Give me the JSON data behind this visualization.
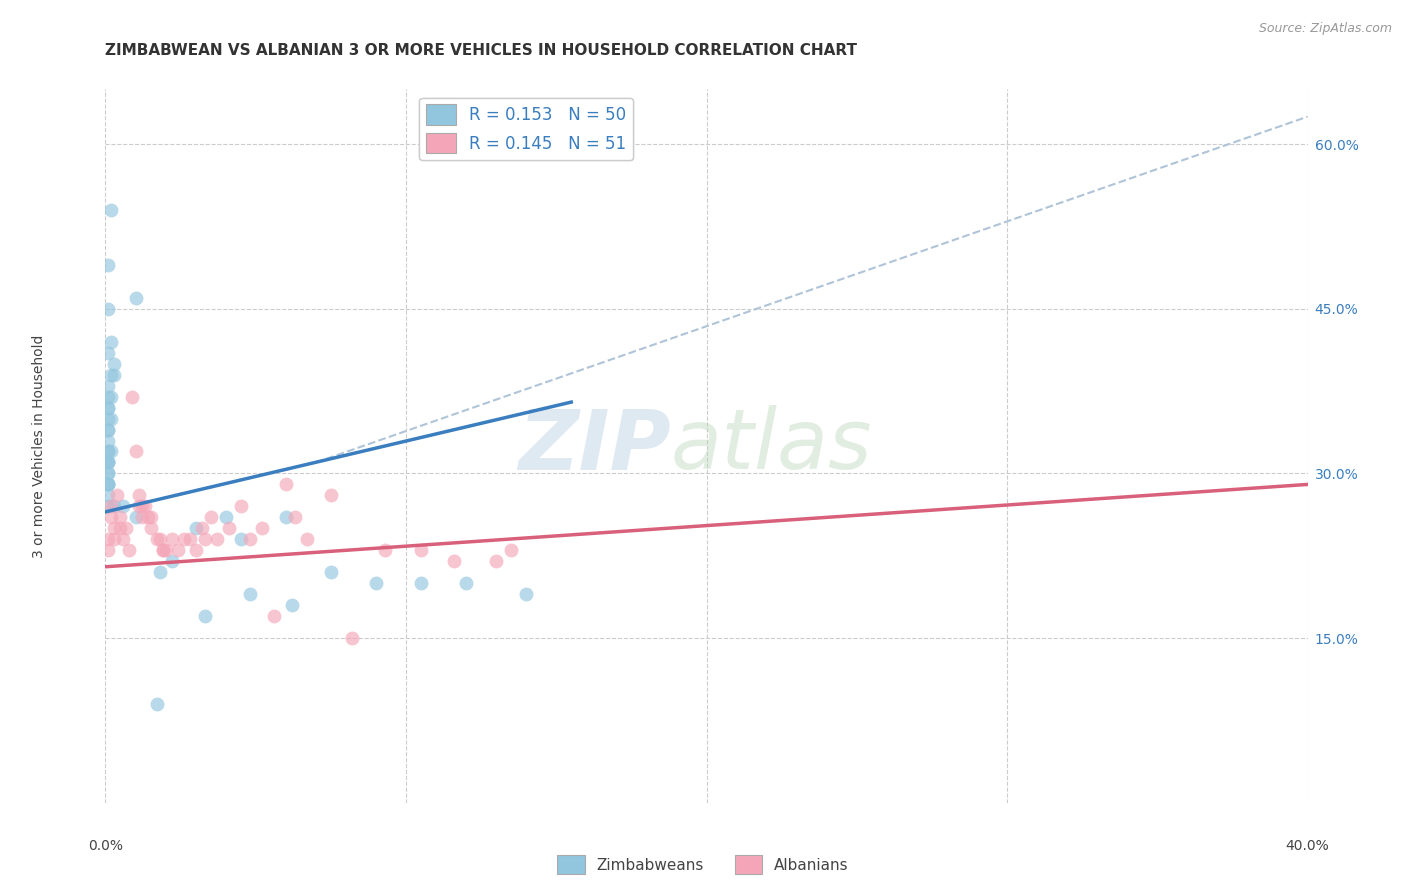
{
  "title": "ZIMBABWEAN VS ALBANIAN 3 OR MORE VEHICLES IN HOUSEHOLD CORRELATION CHART",
  "source": "Source: ZipAtlas.com",
  "ylabel": "3 or more Vehicles in Household",
  "xlim": [
    0.0,
    0.4
  ],
  "ylim": [
    0.0,
    0.65
  ],
  "x_tick_positions": [
    0.0,
    0.1,
    0.2,
    0.3,
    0.4
  ],
  "x_tick_labels": [
    "0.0%",
    "",
    "",
    "",
    "40.0%"
  ],
  "y_ticks_right": [
    0.15,
    0.3,
    0.45,
    0.6
  ],
  "y_tick_labels_right": [
    "15.0%",
    "30.0%",
    "45.0%",
    "60.0%"
  ],
  "legend_blue_label": "R = 0.153   N = 50",
  "legend_pink_label": "R = 0.145   N = 51",
  "legend_bottom": [
    "Zimbabweans",
    "Albanians"
  ],
  "blue_color": "#92c5de",
  "pink_color": "#f4a6b8",
  "blue_line_color": "#3a7ebf",
  "pink_line_color": "#d9607a",
  "dashed_line_color": "#b0c4d8",
  "watermark_zip": "ZIP",
  "watermark_atlas": "atlas",
  "blue_scatter_x": [
    0.002,
    0.01,
    0.001,
    0.001,
    0.002,
    0.001,
    0.003,
    0.003,
    0.002,
    0.001,
    0.001,
    0.002,
    0.001,
    0.001,
    0.001,
    0.002,
    0.001,
    0.001,
    0.001,
    0.001,
    0.002,
    0.001,
    0.001,
    0.001,
    0.001,
    0.001,
    0.001,
    0.001,
    0.001,
    0.001,
    0.001,
    0.001,
    0.003,
    0.006,
    0.01,
    0.04,
    0.06,
    0.03,
    0.045,
    0.022,
    0.018,
    0.075,
    0.09,
    0.105,
    0.12,
    0.14,
    0.048,
    0.062,
    0.033,
    0.017
  ],
  "blue_scatter_y": [
    0.54,
    0.46,
    0.49,
    0.45,
    0.42,
    0.41,
    0.4,
    0.39,
    0.39,
    0.38,
    0.37,
    0.37,
    0.36,
    0.36,
    0.35,
    0.35,
    0.34,
    0.34,
    0.33,
    0.32,
    0.32,
    0.32,
    0.31,
    0.31,
    0.31,
    0.3,
    0.3,
    0.29,
    0.29,
    0.29,
    0.28,
    0.27,
    0.27,
    0.27,
    0.26,
    0.26,
    0.26,
    0.25,
    0.24,
    0.22,
    0.21,
    0.21,
    0.2,
    0.2,
    0.2,
    0.19,
    0.19,
    0.18,
    0.17,
    0.09
  ],
  "pink_scatter_x": [
    0.001,
    0.001,
    0.002,
    0.002,
    0.003,
    0.003,
    0.004,
    0.005,
    0.005,
    0.006,
    0.007,
    0.008,
    0.009,
    0.01,
    0.011,
    0.011,
    0.012,
    0.012,
    0.013,
    0.014,
    0.015,
    0.015,
    0.017,
    0.018,
    0.019,
    0.019,
    0.02,
    0.022,
    0.024,
    0.026,
    0.028,
    0.03,
    0.032,
    0.033,
    0.035,
    0.037,
    0.041,
    0.045,
    0.048,
    0.052,
    0.056,
    0.06,
    0.063,
    0.067,
    0.075,
    0.082,
    0.093,
    0.105,
    0.13,
    0.135,
    0.116
  ],
  "pink_scatter_y": [
    0.24,
    0.23,
    0.26,
    0.27,
    0.25,
    0.24,
    0.28,
    0.25,
    0.26,
    0.24,
    0.25,
    0.23,
    0.37,
    0.32,
    0.28,
    0.27,
    0.27,
    0.26,
    0.27,
    0.26,
    0.25,
    0.26,
    0.24,
    0.24,
    0.23,
    0.23,
    0.23,
    0.24,
    0.23,
    0.24,
    0.24,
    0.23,
    0.25,
    0.24,
    0.26,
    0.24,
    0.25,
    0.27,
    0.24,
    0.25,
    0.17,
    0.29,
    0.26,
    0.24,
    0.28,
    0.15,
    0.23,
    0.23,
    0.22,
    0.23,
    0.22
  ],
  "blue_trend_x": [
    0.0,
    0.155
  ],
  "blue_trend_y": [
    0.265,
    0.365
  ],
  "pink_trend_x": [
    0.0,
    0.4
  ],
  "pink_trend_y": [
    0.215,
    0.29
  ],
  "dashed_trend_x": [
    0.07,
    0.4
  ],
  "dashed_trend_y": [
    0.31,
    0.625
  ],
  "grid_color": "#cccccc",
  "background_color": "#ffffff",
  "title_fontsize": 11,
  "source_fontsize": 9
}
